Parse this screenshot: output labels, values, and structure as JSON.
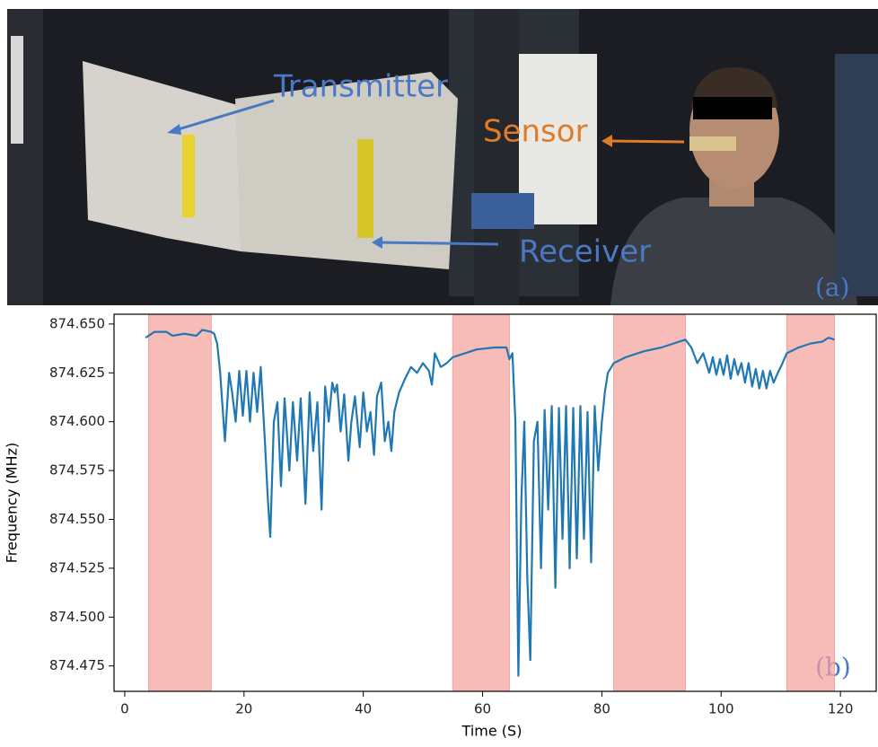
{
  "photo": {
    "transmitter": "Transmitter",
    "sensor": "Sensor",
    "receiver": "Receiver",
    "panel_label": "(a)"
  },
  "chart_data": {
    "type": "line",
    "xlabel": "Time (S)",
    "ylabel": "Frequency (MHz)",
    "panel_label": "(b)",
    "xlim": [
      -1.8,
      126
    ],
    "xticks": [
      0,
      20,
      40,
      60,
      80,
      100,
      120
    ],
    "ylim": [
      874.462,
      874.655
    ],
    "yticks": [
      {
        "value": 874.65,
        "label": "874.650"
      },
      874.625,
      {
        "value": 874.6,
        "label": "874.600"
      },
      874.575,
      {
        "value": 874.55,
        "label": "874.550"
      },
      874.525,
      {
        "value": 874.5,
        "label": "874.500"
      },
      874.475
    ],
    "shaded_regions": [
      [
        4,
        14.5
      ],
      [
        55,
        64.5
      ],
      [
        82,
        94
      ],
      [
        111,
        119
      ]
    ],
    "shade_color": "#f4a09a",
    "x": [
      3.5,
      5,
      7,
      8,
      10,
      12,
      13,
      14.5,
      15,
      15.5,
      16,
      16.8,
      17.5,
      18,
      18.6,
      19.2,
      19.8,
      20.4,
      21,
      21.6,
      22.2,
      22.8,
      23.5,
      24,
      24.4,
      25,
      25.6,
      26.2,
      26.8,
      27.6,
      28.2,
      28.9,
      29.5,
      30.3,
      31,
      31.6,
      32.3,
      33,
      33.6,
      34.2,
      34.8,
      35.2,
      35.6,
      36.2,
      36.8,
      37.5,
      38,
      38.6,
      39.4,
      40,
      40.6,
      41.2,
      41.8,
      42.3,
      43,
      43.6,
      44.2,
      44.7,
      45.2,
      46,
      47,
      48,
      49,
      50,
      51,
      51.5,
      52,
      53,
      54,
      55,
      57,
      59,
      62,
      64,
      64.5,
      65,
      65.5,
      66,
      66.5,
      67,
      67.5,
      68,
      68.6,
      69.2,
      69.8,
      70.4,
      71,
      71.6,
      72.2,
      72.8,
      73.4,
      74,
      74.6,
      75.2,
      75.8,
      76.4,
      77,
      77.6,
      78.2,
      78.8,
      79.4,
      80,
      80.5,
      81,
      82,
      84,
      87,
      90,
      92,
      94,
      95,
      96,
      97,
      98,
      98.6,
      99.2,
      99.8,
      100.4,
      101,
      101.6,
      102.2,
      102.8,
      103.4,
      104,
      104.6,
      105.2,
      105.8,
      106.4,
      107,
      107.6,
      108.2,
      108.8,
      109.5,
      110,
      111,
      113,
      115,
      117,
      118,
      119
    ],
    "series": [
      {
        "color": "#1f77b4",
        "values": [
          874.643,
          874.646,
          874.646,
          874.644,
          874.645,
          874.644,
          874.647,
          874.646,
          874.645,
          874.64,
          874.625,
          874.59,
          874.625,
          874.615,
          874.6,
          874.626,
          874.603,
          874.626,
          874.6,
          874.625,
          874.605,
          874.628,
          874.59,
          874.56,
          874.541,
          874.6,
          874.61,
          874.567,
          874.612,
          874.575,
          874.61,
          874.58,
          874.612,
          874.558,
          874.615,
          874.585,
          874.61,
          874.555,
          874.618,
          874.6,
          874.62,
          874.615,
          874.619,
          874.595,
          874.614,
          874.58,
          874.6,
          874.613,
          874.587,
          874.615,
          874.595,
          874.605,
          874.583,
          874.613,
          874.62,
          874.59,
          874.6,
          874.585,
          874.605,
          874.615,
          874.622,
          874.628,
          874.625,
          874.63,
          874.626,
          874.619,
          874.635,
          874.628,
          874.63,
          874.633,
          874.635,
          874.637,
          874.638,
          874.638,
          874.632,
          874.635,
          874.6,
          874.47,
          874.56,
          874.6,
          874.52,
          874.478,
          874.59,
          874.6,
          874.525,
          874.606,
          874.555,
          874.608,
          874.515,
          874.607,
          874.54,
          874.608,
          874.525,
          874.607,
          874.53,
          874.608,
          874.54,
          874.605,
          874.528,
          874.608,
          874.575,
          874.6,
          874.615,
          874.625,
          874.63,
          874.633,
          874.636,
          874.638,
          874.64,
          874.642,
          874.638,
          874.63,
          874.635,
          874.625,
          874.633,
          874.624,
          874.632,
          874.624,
          874.634,
          874.622,
          874.632,
          874.624,
          874.63,
          874.62,
          874.63,
          874.618,
          874.627,
          874.617,
          874.626,
          874.617,
          874.626,
          874.62,
          874.625,
          874.628,
          874.635,
          874.638,
          874.64,
          874.641,
          874.643,
          874.642
        ]
      }
    ]
  }
}
